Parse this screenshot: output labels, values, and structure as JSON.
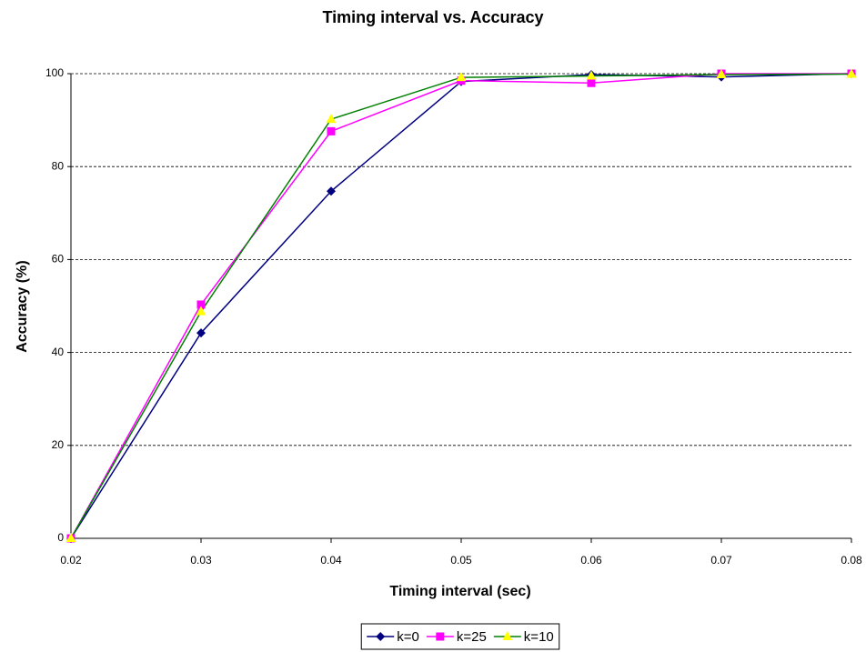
{
  "chart_data": {
    "type": "line",
    "title": "Timing interval vs. Accuracy",
    "x_label": "Timing interval (sec)",
    "y_label": "Accuracy (%)",
    "x": [
      0.02,
      0.03,
      0.04,
      0.05,
      0.06,
      0.07,
      0.08
    ],
    "series": [
      {
        "name": "k=0",
        "color": "#000080",
        "marker": "diamond",
        "marker_color": "#000080",
        "values": [
          0,
          44.2,
          74.7,
          98.3,
          99.8,
          99.3,
          100
        ]
      },
      {
        "name": "k=25",
        "color": "#ff00ff",
        "marker": "square",
        "marker_color": "#ff00ff",
        "values": [
          0,
          50.3,
          87.6,
          98.5,
          98.0,
          100,
          100
        ]
      },
      {
        "name": "k=10",
        "color": "#008000",
        "marker": "triangle",
        "marker_color": "#ffff00",
        "values": [
          0,
          48.8,
          90.2,
          99.2,
          99.5,
          99.8,
          99.9
        ]
      }
    ],
    "xlim": [
      0.02,
      0.08
    ],
    "xticks": [
      0.02,
      0.03,
      0.04,
      0.05,
      0.06,
      0.07,
      0.08
    ],
    "ylim": [
      0,
      100
    ],
    "yticks": [
      0,
      20,
      40,
      60,
      80,
      100
    ],
    "grid": true,
    "legend": "bottom"
  }
}
